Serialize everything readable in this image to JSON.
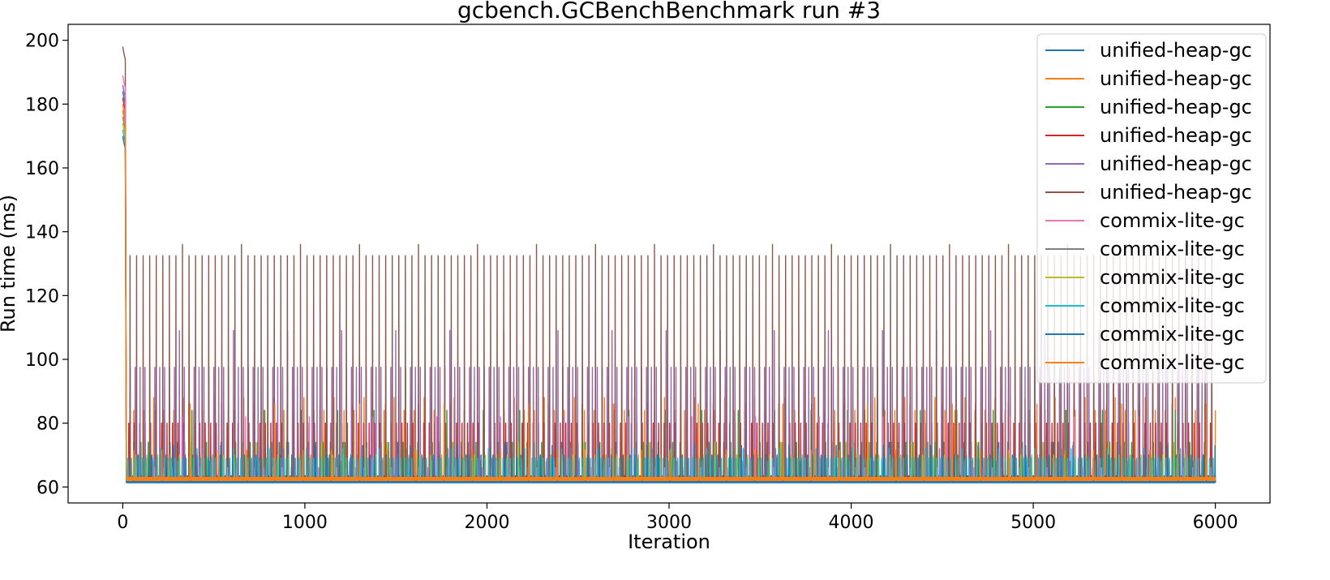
{
  "chart_data": {
    "type": "line",
    "title": "gcbench.GCBenchBenchmark run #3",
    "xlabel": "Iteration",
    "ylabel": "Run time (ms)",
    "xlim": [
      -300,
      6300
    ],
    "ylim": [
      55,
      205
    ],
    "xticks": [
      0,
      1000,
      2000,
      3000,
      4000,
      5000,
      6000
    ],
    "yticks": [
      60,
      80,
      100,
      120,
      140,
      160,
      180,
      200
    ],
    "grid": false,
    "legend": {
      "placement": "top-right"
    },
    "series": [
      {
        "name": "unified-heap-gc",
        "color": "#1f77b4",
        "start": 184,
        "base": 62,
        "spike": 70,
        "period": 75,
        "phase": 10,
        "alt_every": 4,
        "alt_spike": 74
      },
      {
        "name": "unified-heap-gc",
        "color": "#ff7f0e",
        "start": 180,
        "base": 62.5,
        "spike": 84,
        "period": 55,
        "phase": 5,
        "alt_every": 3,
        "alt_spike": 88
      },
      {
        "name": "unified-heap-gc",
        "color": "#2ca02c",
        "start": 178,
        "base": 62,
        "spike": 74,
        "period": 40,
        "phase": 20,
        "alt_every": 5,
        "alt_spike": 84
      },
      {
        "name": "unified-heap-gc",
        "color": "#d62728",
        "start": 182,
        "base": 63,
        "spike": 80,
        "period": 30,
        "phase": 3,
        "alt_every": 6,
        "alt_spike": 86
      },
      {
        "name": "unified-heap-gc",
        "color": "#9467bd",
        "start": 186,
        "base": 62,
        "spike": 97.5,
        "period": 27,
        "phase": 14,
        "alt_every": 11,
        "alt_spike": 109
      },
      {
        "name": "unified-heap-gc",
        "color": "#8c564b",
        "start": 198,
        "base": 62,
        "spike": 132.5,
        "period": 36,
        "phase": 40,
        "alt_every": 9,
        "alt_spike": 136
      },
      {
        "name": "commix-lite-gc",
        "color": "#e377c2",
        "start": 189,
        "base": 62,
        "spike": 66,
        "period": 50,
        "phase": 25,
        "alt_every": 7,
        "alt_spike": 82
      },
      {
        "name": "commix-lite-gc",
        "color": "#7f7f7f",
        "start": 176,
        "base": 62,
        "spike": 68,
        "period": 45,
        "phase": 30,
        "alt_every": 5,
        "alt_spike": 72
      },
      {
        "name": "commix-lite-gc",
        "color": "#bcbd22",
        "start": 174,
        "base": 62,
        "spike": 70,
        "period": 60,
        "phase": 12,
        "alt_every": 6,
        "alt_spike": 74
      },
      {
        "name": "commix-lite-gc",
        "color": "#17becf",
        "start": 172,
        "base": 62,
        "spike": 69,
        "period": 20,
        "phase": 8,
        "alt_every": 10,
        "alt_spike": 72
      },
      {
        "name": "commix-lite-gc",
        "color": "#1f77b4",
        "start": 170,
        "base": 61.8,
        "spike": 70,
        "period": 65,
        "phase": 18,
        "alt_every": 4,
        "alt_spike": 73
      },
      {
        "name": "commix-lite-gc",
        "color": "#ff7f0e",
        "start": 178,
        "base": 62.5,
        "spike": 71.5,
        "period": 155,
        "phase": 60,
        "alt_every": 3,
        "alt_spike": 86
      }
    ],
    "x_max": 6000
  }
}
